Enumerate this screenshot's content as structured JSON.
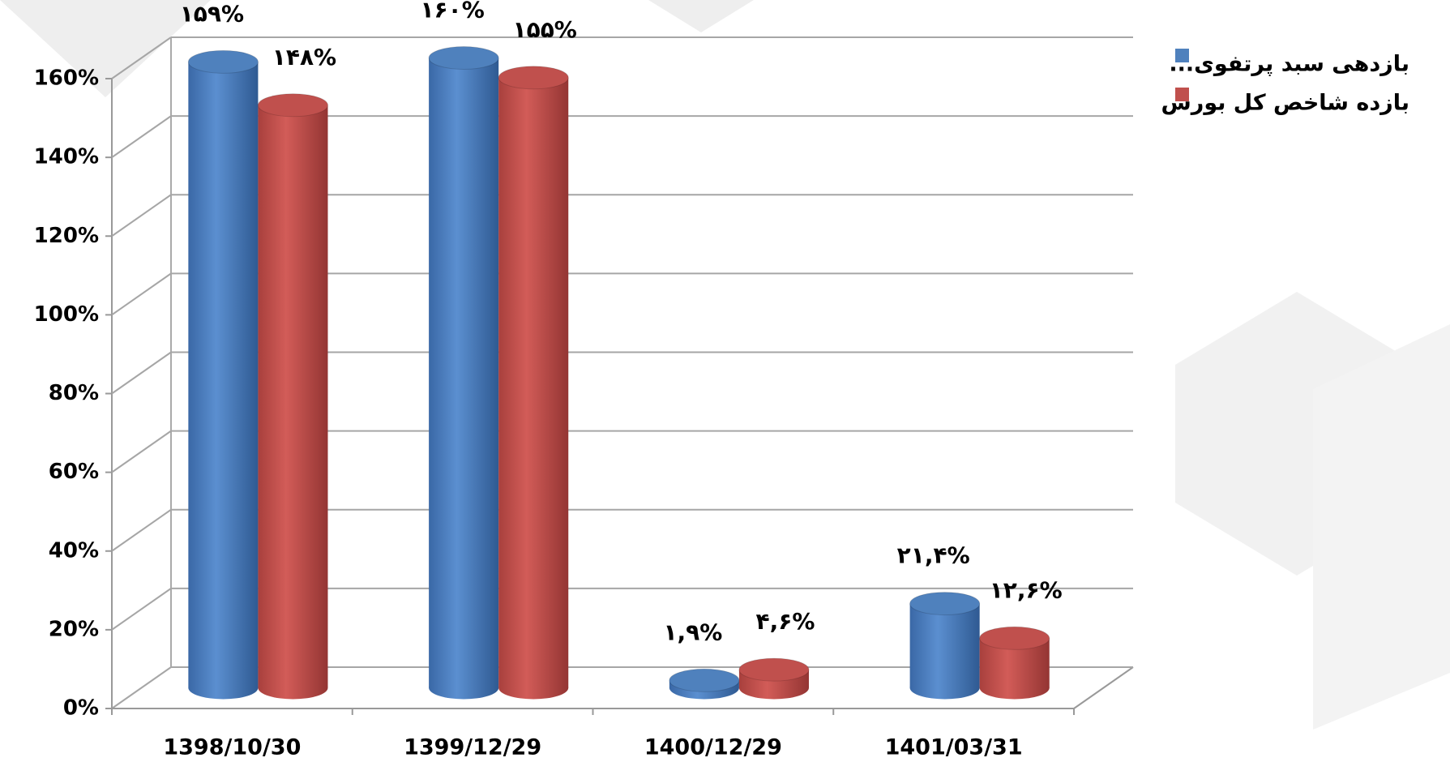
{
  "chart_data": {
    "type": "bar3d",
    "categories": [
      "1398/10/30",
      "1399/12/29",
      "1400/12/29",
      "1401/03/31"
    ],
    "series": [
      {
        "name": "بازدهی سبد پرتفوی...",
        "color": "#4f81bd",
        "values": [
          159,
          160,
          1.9,
          21.4
        ],
        "value_labels": [
          "۱۵۹%",
          "۱۶۰%",
          "۱,۹%",
          "۲۱,۴%"
        ]
      },
      {
        "name": "بازده شاخص کل بورس",
        "color": "#c0504d",
        "values": [
          148,
          155,
          4.6,
          12.6
        ],
        "value_labels": [
          "۱۴۸%",
          "۱۵۵%",
          "۴,۶%",
          "۱۲,۶%"
        ]
      }
    ],
    "ylim": [
      0,
      160
    ],
    "yticks": [
      {
        "value": 0,
        "label": "0%"
      },
      {
        "value": 20,
        "label": "20%"
      },
      {
        "value": 40,
        "label": "40%"
      },
      {
        "value": 60,
        "label": "60%"
      },
      {
        "value": 80,
        "label": "80%"
      },
      {
        "value": 100,
        "label": "100%"
      },
      {
        "value": 120,
        "label": "120%"
      },
      {
        "value": 140,
        "label": "140%"
      },
      {
        "value": 160,
        "label": "160%"
      }
    ],
    "grid": true,
    "legend": "top-right"
  }
}
